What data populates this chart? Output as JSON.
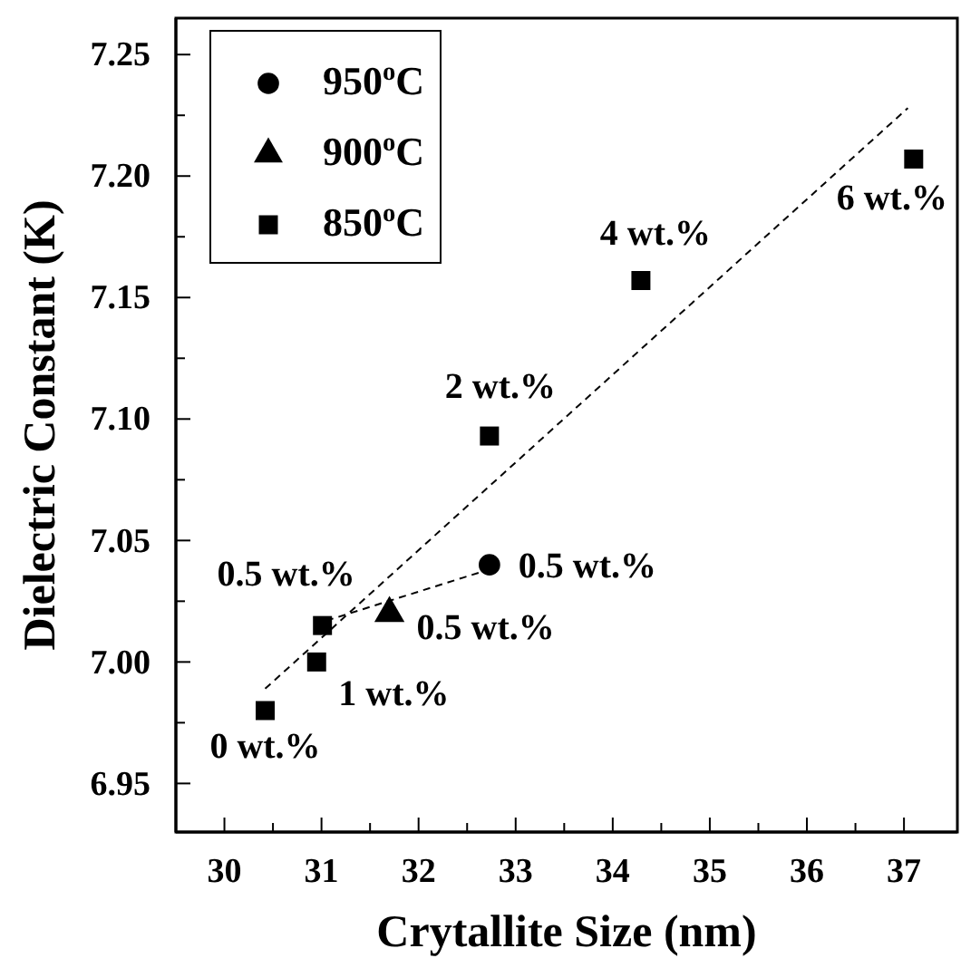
{
  "chart_data": {
    "type": "scatter",
    "xlabel": "Crytallite Size (nm)",
    "ylabel": "Dielectric Constant (K)",
    "xlim": [
      29.5,
      37.55
    ],
    "ylim": [
      6.93,
      7.265
    ],
    "xticks": [
      30,
      {
        "value": 30.5,
        "label": null
      },
      31,
      {
        "value": 31.5,
        "label": null
      },
      32,
      {
        "value": 32.5,
        "label": null
      },
      33,
      {
        "value": 33.5,
        "label": null
      },
      34,
      {
        "value": 34.5,
        "label": null
      },
      35,
      {
        "value": 35.5,
        "label": null
      },
      36,
      {
        "value": 36.5,
        "label": null
      },
      37
    ],
    "yticks": [
      6.95,
      {
        "value": 6.975,
        "label": null
      },
      {
        "value": 7.0,
        "label": "7.00"
      },
      {
        "value": 7.025,
        "label": null
      },
      7.05,
      {
        "value": 7.075,
        "label": null
      },
      {
        "value": 7.1,
        "label": "7.10"
      },
      {
        "value": 7.125,
        "label": null
      },
      7.15,
      {
        "value": 7.175,
        "label": null
      },
      {
        "value": 7.2,
        "label": "7.20"
      },
      {
        "value": 7.225,
        "label": null
      },
      7.25
    ],
    "legend": "top left",
    "grid": false,
    "series": [
      {
        "name": "950$^{o}$C",
        "marker": "circle",
        "color": "#000000",
        "x": [
          32.73
        ],
        "values": [
          7.04
        ]
      },
      {
        "name": "900$^{o}$C",
        "marker": "triangle",
        "color": "#000000",
        "x": [
          31.7
        ],
        "values": [
          7.02
        ]
      },
      {
        "name": "850$^{o}$C",
        "marker": "square",
        "color": "#000000",
        "x": [
          30.42,
          30.95,
          31.01,
          32.73,
          34.29,
          37.1
        ],
        "values": [
          6.98,
          7.0,
          7.015,
          7.093,
          7.157,
          7.207
        ]
      },
      {
        "type": "line",
        "line_style": "dashed",
        "color": "#000000",
        "x": [
          30.42,
          37.04
        ],
        "values": [
          6.989,
          7.228
        ]
      },
      {
        "type": "line",
        "line_style": "dashed",
        "color": "#000000",
        "x": [
          31.05,
          32.64
        ],
        "values": [
          7.017,
          7.037
        ]
      }
    ],
    "annotations": [
      {
        "text": "0 wt.%",
        "x": 30.42,
        "y": 6.98
      },
      {
        "text": "1 wt.%",
        "x": 30.95,
        "y": 7.0
      },
      {
        "text": "0.5 wt.%",
        "x": 31.01,
        "y": 7.015
      },
      {
        "text": "0.5 wt.%",
        "x": 31.7,
        "y": 7.02
      },
      {
        "text": "0.5 wt.%",
        "x": 32.73,
        "y": 7.04
      },
      {
        "text": "2 wt.%",
        "x": 32.73,
        "y": 7.093
      },
      {
        "text": "4 wt.%",
        "x": 34.29,
        "y": 7.157
      },
      {
        "text": "6 wt.%",
        "x": 37.1,
        "y": 7.207
      }
    ]
  }
}
